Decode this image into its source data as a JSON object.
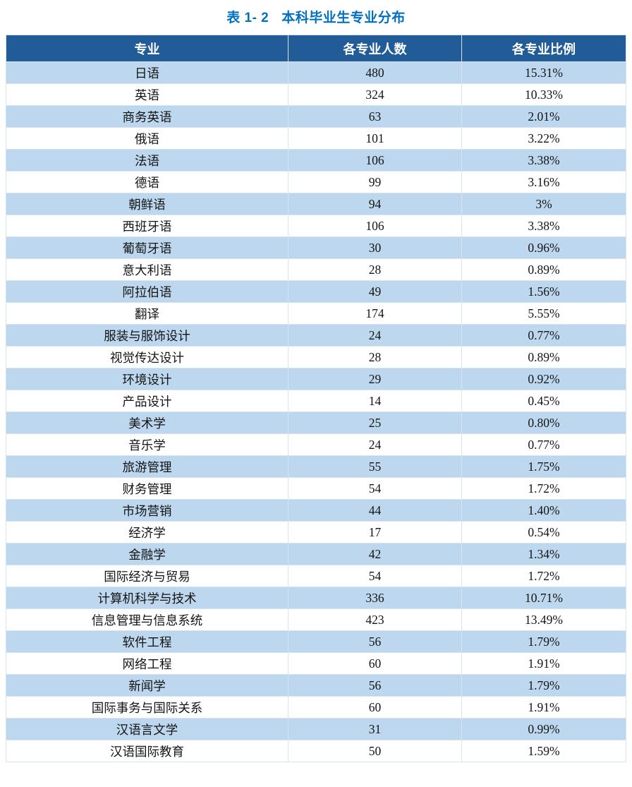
{
  "caption": {
    "label": "表 1- 2",
    "text": "本科毕业生专业分布"
  },
  "table": {
    "headers": [
      "专业",
      "各专业人数",
      "各专业比例"
    ],
    "rows": [
      [
        "日语",
        "480",
        "15.31%"
      ],
      [
        "英语",
        "324",
        "10.33%"
      ],
      [
        "商务英语",
        "63",
        "2.01%"
      ],
      [
        "俄语",
        "101",
        "3.22%"
      ],
      [
        "法语",
        "106",
        "3.38%"
      ],
      [
        "德语",
        "99",
        "3.16%"
      ],
      [
        "朝鲜语",
        "94",
        "3%"
      ],
      [
        "西班牙语",
        "106",
        "3.38%"
      ],
      [
        "葡萄牙语",
        "30",
        "0.96%"
      ],
      [
        "意大利语",
        "28",
        "0.89%"
      ],
      [
        "阿拉伯语",
        "49",
        "1.56%"
      ],
      [
        "翻译",
        "174",
        "5.55%"
      ],
      [
        "服装与服饰设计",
        "24",
        "0.77%"
      ],
      [
        "视觉传达设计",
        "28",
        "0.89%"
      ],
      [
        "环境设计",
        "29",
        "0.92%"
      ],
      [
        "产品设计",
        "14",
        "0.45%"
      ],
      [
        "美术学",
        "25",
        "0.80%"
      ],
      [
        "音乐学",
        "24",
        "0.77%"
      ],
      [
        "旅游管理",
        "55",
        "1.75%"
      ],
      [
        "财务管理",
        "54",
        "1.72%"
      ],
      [
        "市场营销",
        "44",
        "1.40%"
      ],
      [
        "经济学",
        "17",
        "0.54%"
      ],
      [
        "金融学",
        "42",
        "1.34%"
      ],
      [
        "国际经济与贸易",
        "54",
        "1.72%"
      ],
      [
        "计算机科学与技术",
        "336",
        "10.71%"
      ],
      [
        "信息管理与信息系统",
        "423",
        "13.49%"
      ],
      [
        "软件工程",
        "56",
        "1.79%"
      ],
      [
        "网络工程",
        "60",
        "1.91%"
      ],
      [
        "新闻学",
        "56",
        "1.79%"
      ],
      [
        "国际事务与国际关系",
        "60",
        "1.91%"
      ],
      [
        "汉语言文学",
        "31",
        "0.99%"
      ],
      [
        "汉语国际教育",
        "50",
        "1.59%"
      ]
    ]
  },
  "colors": {
    "header_bg": "#215C98",
    "stripe_bg": "#BDD7EE",
    "title_color": "#0070C0",
    "header_text": "#FFFFFF"
  }
}
